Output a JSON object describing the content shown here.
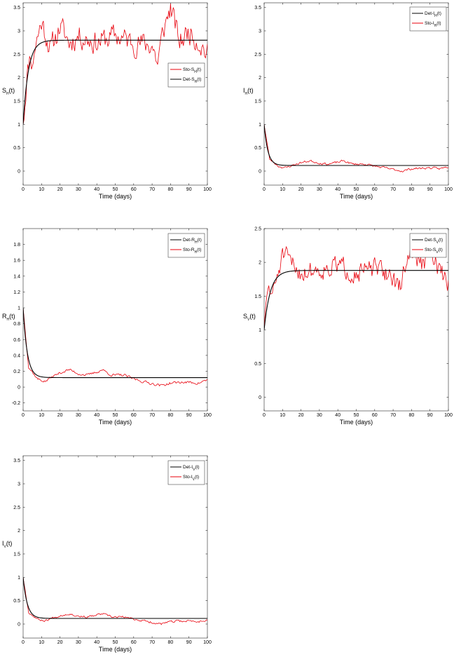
{
  "chart_data": [
    {
      "id": "SH",
      "type": "line",
      "xlabel": "Time (days)",
      "ylabel": {
        "base": "S",
        "sub": "H",
        "tail": "(t)"
      },
      "xlim": [
        0,
        100
      ],
      "ylim": [
        -0.3,
        3.6
      ],
      "xticks": [
        0,
        10,
        20,
        30,
        40,
        50,
        60,
        70,
        80,
        90,
        100
      ],
      "yticks": [
        0,
        0.5,
        1,
        1.5,
        2,
        2.5,
        3,
        3.5
      ],
      "legend_position": "center-right",
      "legend": [
        {
          "base": "Sto-S",
          "sub": "H",
          "tail": "(t)",
          "color": "#e8000b"
        },
        {
          "base": "Det-S",
          "sub": "H",
          "tail": "(t)",
          "color": "#000000"
        }
      ],
      "series": [
        {
          "label": "Det-S_H(t)",
          "color": "#000000",
          "kind": "det",
          "start": 1.0,
          "end": 2.8,
          "rate": 0.35
        },
        {
          "label": "Sto-S_H(t)",
          "color": "#e8000b",
          "kind": "sto",
          "start": 1.0,
          "end": 2.8,
          "rate": 0.55,
          "noise": 0.22,
          "seed": 11,
          "anchors": [
            [
              0,
              1.0
            ],
            [
              2,
              2.0
            ],
            [
              4,
              2.55
            ],
            [
              5,
              2.2
            ],
            [
              6,
              2.6
            ],
            [
              10,
              3.2
            ],
            [
              15,
              2.6
            ],
            [
              20,
              3.1
            ],
            [
              25,
              2.75
            ],
            [
              30,
              2.9
            ],
            [
              40,
              2.75
            ],
            [
              50,
              2.9
            ],
            [
              60,
              2.75
            ],
            [
              70,
              2.7
            ],
            [
              73,
              2.3
            ],
            [
              76,
              3.0
            ],
            [
              80,
              3.5
            ],
            [
              85,
              2.75
            ],
            [
              90,
              3.0
            ],
            [
              95,
              2.8
            ],
            [
              100,
              2.5
            ]
          ]
        }
      ]
    },
    {
      "id": "IH",
      "type": "line",
      "xlabel": "Time (days)",
      "ylabel": {
        "base": "I",
        "sub": "H",
        "tail": "(t)"
      },
      "xlim": [
        0,
        100
      ],
      "ylim": [
        -0.3,
        3.6
      ],
      "xticks": [
        0,
        10,
        20,
        30,
        40,
        50,
        60,
        70,
        80,
        90,
        100
      ],
      "yticks": [
        0,
        0.5,
        1,
        1.5,
        2,
        2.5,
        3,
        3.5
      ],
      "legend_position": "top-right",
      "legend": [
        {
          "base": "Det-I",
          "sub": "H",
          "tail": "(t)",
          "color": "#000000"
        },
        {
          "base": "Sto-I",
          "sub": "H",
          "tail": "(t)",
          "color": "#e8000b"
        }
      ],
      "series": [
        {
          "label": "Det-I_H(t)",
          "color": "#000000",
          "kind": "det",
          "start": 1.0,
          "end": 0.12,
          "rate": 0.5
        },
        {
          "label": "Sto-I_H(t)",
          "color": "#e8000b",
          "kind": "sto",
          "start": 1.0,
          "end": 0.12,
          "rate": 0.9,
          "noise": 0.02,
          "seed": 23,
          "anchors": [
            [
              0,
              1.0
            ],
            [
              3,
              0.25
            ],
            [
              8,
              0.1
            ],
            [
              12,
              0.07
            ],
            [
              15,
              0.12
            ],
            [
              20,
              0.18
            ],
            [
              25,
              0.22
            ],
            [
              30,
              0.17
            ],
            [
              35,
              0.15
            ],
            [
              40,
              0.19
            ],
            [
              43,
              0.22
            ],
            [
              48,
              0.15
            ],
            [
              55,
              0.15
            ],
            [
              58,
              0.12
            ],
            [
              65,
              0.07
            ],
            [
              75,
              0.0
            ],
            [
              80,
              0.05
            ],
            [
              85,
              0.06
            ],
            [
              90,
              0.07
            ],
            [
              95,
              0.05
            ],
            [
              100,
              0.09
            ]
          ]
        }
      ]
    },
    {
      "id": "RH",
      "type": "line",
      "xlabel": "Time (days)",
      "ylabel": {
        "base": "R",
        "sub": "H",
        "tail": "(t)"
      },
      "xlim": [
        0,
        100
      ],
      "ylim": [
        -0.3,
        2.0
      ],
      "xticks": [
        0,
        10,
        20,
        30,
        40,
        50,
        60,
        70,
        80,
        90,
        100
      ],
      "yticks": [
        -0.2,
        0,
        0.2,
        0.4,
        0.6,
        0.8,
        1,
        1.2,
        1.4,
        1.6,
        1.8
      ],
      "legend_position": "top-right",
      "legend": [
        {
          "base": "Det-R",
          "sub": "H",
          "tail": "(t)",
          "color": "#000000"
        },
        {
          "base": "Sto-R",
          "sub": "H",
          "tail": "(t)",
          "color": "#e8000b"
        }
      ],
      "series": [
        {
          "label": "Det-R_H(t)",
          "color": "#000000",
          "kind": "det",
          "start": 1.0,
          "end": 0.12,
          "rate": 0.45
        },
        {
          "label": "Sto-R_H(t)",
          "color": "#e8000b",
          "kind": "sto",
          "start": 1.0,
          "end": 0.12,
          "rate": 0.8,
          "noise": 0.015,
          "seed": 37,
          "anchors": [
            [
              0,
              1.0
            ],
            [
              3,
              0.25
            ],
            [
              8,
              0.1
            ],
            [
              12,
              0.07
            ],
            [
              15,
              0.12
            ],
            [
              20,
              0.18
            ],
            [
              25,
              0.22
            ],
            [
              30,
              0.17
            ],
            [
              35,
              0.15
            ],
            [
              40,
              0.19
            ],
            [
              43,
              0.22
            ],
            [
              48,
              0.15
            ],
            [
              55,
              0.15
            ],
            [
              58,
              0.12
            ],
            [
              65,
              0.07
            ],
            [
              75,
              0.02
            ],
            [
              80,
              0.05
            ],
            [
              85,
              0.06
            ],
            [
              90,
              0.06
            ],
            [
              95,
              0.05
            ],
            [
              100,
              0.09
            ]
          ]
        }
      ]
    },
    {
      "id": "SV",
      "type": "line",
      "xlabel": "Time (days)",
      "ylabel": {
        "base": "S",
        "sub": "V",
        "tail": "(t)"
      },
      "xlim": [
        0,
        100
      ],
      "ylim": [
        -0.2,
        2.5
      ],
      "xticks": [
        0,
        10,
        20,
        30,
        40,
        50,
        60,
        70,
        80,
        90,
        100
      ],
      "yticks": [
        0,
        0.5,
        1,
        1.5,
        2,
        2.5
      ],
      "legend_position": "top-right",
      "legend": [
        {
          "base": "Det-S",
          "sub": "V",
          "tail": "(t)",
          "color": "#000000"
        },
        {
          "base": "Sto-S",
          "sub": "V",
          "tail": "(t)",
          "color": "#e8000b"
        }
      ],
      "series": [
        {
          "label": "Det-S_V(t)",
          "color": "#000000",
          "kind": "det",
          "start": 1.0,
          "end": 1.88,
          "rate": 0.3
        },
        {
          "label": "Sto-S_V(t)",
          "color": "#e8000b",
          "kind": "sto",
          "start": 1.0,
          "end": 1.88,
          "rate": 0.6,
          "noise": 0.13,
          "seed": 51,
          "anchors": [
            [
              0,
              1.0
            ],
            [
              2,
              1.6
            ],
            [
              5,
              1.55
            ],
            [
              8,
              1.9
            ],
            [
              10,
              2.1
            ],
            [
              20,
              1.85
            ],
            [
              30,
              1.9
            ],
            [
              40,
              1.95
            ],
            [
              50,
              1.85
            ],
            [
              60,
              1.9
            ],
            [
              70,
              1.8
            ],
            [
              73,
              1.55
            ],
            [
              77,
              2.0
            ],
            [
              80,
              2.2
            ],
            [
              85,
              1.95
            ],
            [
              90,
              2.1
            ],
            [
              95,
              1.9
            ],
            [
              100,
              1.65
            ]
          ]
        }
      ]
    },
    {
      "id": "IV",
      "type": "line",
      "xlabel": "Time (days)",
      "ylabel": {
        "base": "I",
        "sub": "V",
        "tail": "(t)"
      },
      "xlim": [
        0,
        100
      ],
      "ylim": [
        -0.3,
        3.6
      ],
      "xticks": [
        0,
        10,
        20,
        30,
        40,
        50,
        60,
        70,
        80,
        90,
        100
      ],
      "yticks": [
        0,
        0.5,
        1,
        1.5,
        2,
        2.5,
        3,
        3.5
      ],
      "legend_position": "top-right",
      "legend": [
        {
          "base": "Det-I",
          "sub": "V",
          "tail": "(t)",
          "color": "#000000"
        },
        {
          "base": "Sto-I",
          "sub": "V",
          "tail": "(t)",
          "color": "#e8000b"
        }
      ],
      "series": [
        {
          "label": "Det-I_V(t)",
          "color": "#000000",
          "kind": "det",
          "start": 1.0,
          "end": 0.12,
          "rate": 0.45
        },
        {
          "label": "Sto-I_V(t)",
          "color": "#e8000b",
          "kind": "sto",
          "start": 1.0,
          "end": 0.12,
          "rate": 0.85,
          "noise": 0.02,
          "seed": 67,
          "anchors": [
            [
              0,
              1.0
            ],
            [
              3,
              0.25
            ],
            [
              8,
              0.1
            ],
            [
              12,
              0.07
            ],
            [
              15,
              0.12
            ],
            [
              20,
              0.18
            ],
            [
              25,
              0.22
            ],
            [
              30,
              0.17
            ],
            [
              35,
              0.15
            ],
            [
              40,
              0.19
            ],
            [
              43,
              0.22
            ],
            [
              48,
              0.15
            ],
            [
              55,
              0.15
            ],
            [
              58,
              0.12
            ],
            [
              65,
              0.07
            ],
            [
              75,
              0.0
            ],
            [
              80,
              0.05
            ],
            [
              85,
              0.06
            ],
            [
              90,
              0.07
            ],
            [
              95,
              0.05
            ],
            [
              100,
              0.09
            ]
          ]
        }
      ]
    }
  ]
}
